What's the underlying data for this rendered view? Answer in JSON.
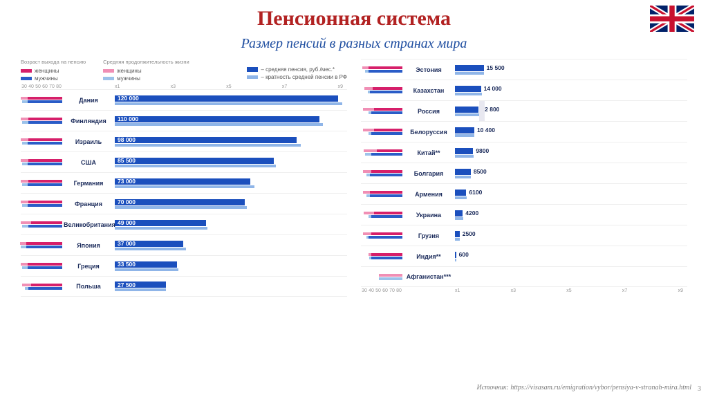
{
  "title": "Пенсионная система",
  "subtitle": "Размер пенсий в разных странах мира",
  "source_label": "Источник:",
  "source_url": "https://visasam.ru/emigration/vybor/pensiya-v-stranah-mira.html",
  "page_number": "3",
  "colors": {
    "title": "#b22222",
    "subtitle": "#1f4ea0",
    "women_dark": "#d61f6a",
    "men_dark": "#2a5cc7",
    "women_light": "#f08fb5",
    "men_light": "#9cc2ea",
    "pension": "#1b4fbd",
    "multiplicity": "#8fb5e8",
    "grid": "#eeeeee",
    "country_text": "#1a2a5a",
    "russia_marker": "#e8e8f0"
  },
  "legend": {
    "col1_head": "Возраст выхода на пенсию",
    "col2_head": "Средняя продолжительность жизни",
    "women": "женщины",
    "men": "мужчины",
    "pension_line": "– средняя пенсия, руб./мес.*",
    "mult_line": "– кратность средней пенсии в РФ"
  },
  "axis": {
    "left_ticks": [
      "80",
      "70",
      "60",
      "50",
      "40",
      "30"
    ],
    "left_max": 80,
    "right_ticks": [
      "x1",
      "x3",
      "x5",
      "x7",
      "x9"
    ],
    "right_max_pension": 125000,
    "right_max_mult": 9.5
  },
  "panel1": {
    "countries": [
      {
        "name": "Дания",
        "women_age": 67,
        "men_age": 67,
        "women_life": 80,
        "men_life": 78,
        "pension": 120000,
        "pension_label": "120 000",
        "mult": 9.3
      },
      {
        "name": "Финляндия",
        "women_age": 65,
        "men_age": 65,
        "women_life": 80,
        "men_life": 78,
        "pension": 110000,
        "pension_label": "110 000",
        "mult": 8.5
      },
      {
        "name": "Израиль",
        "women_age": 65,
        "men_age": 67,
        "women_life": 80,
        "men_life": 78,
        "pension": 98000,
        "pension_label": "98 000",
        "mult": 7.6
      },
      {
        "name": "США",
        "women_age": 65,
        "men_age": 67,
        "women_life": 80,
        "men_life": 78,
        "pension": 85500,
        "pension_label": "85 500",
        "mult": 6.6
      },
      {
        "name": "Германия",
        "women_age": 65,
        "men_age": 67,
        "women_life": 80,
        "men_life": 78,
        "pension": 73000,
        "pension_label": "73 000",
        "mult": 5.7
      },
      {
        "name": "Франция",
        "women_age": 65,
        "men_age": 67,
        "women_life": 80,
        "men_life": 78,
        "pension": 70000,
        "pension_label": "70 000",
        "mult": 5.4
      },
      {
        "name": "Великобритания",
        "women_age": 60,
        "men_age": 65,
        "women_life": 80,
        "men_life": 78,
        "pension": 49000,
        "pension_label": "49 000",
        "mult": 3.8
      },
      {
        "name": "Япония",
        "women_age": 70,
        "men_age": 70,
        "women_life": 82,
        "men_life": 80,
        "pension": 37000,
        "pension_label": "37 000",
        "mult": 2.9
      },
      {
        "name": "Греция",
        "women_age": 67,
        "men_age": 67,
        "women_life": 80,
        "men_life": 78,
        "pension": 33500,
        "pension_label": "33 500",
        "mult": 2.6
      },
      {
        "name": "Польша",
        "women_age": 60,
        "men_age": 65,
        "women_life": 78,
        "men_life": 72,
        "pension": 27500,
        "pension_label": "27 500",
        "mult": 2.1
      }
    ]
  },
  "panel2": {
    "countries": [
      {
        "name": "Эстония",
        "women_age": 65,
        "men_age": 65,
        "women_life": 78,
        "men_life": 72,
        "pension": 15500,
        "pension_label": "15 500",
        "mult": 1.2,
        "label_outside": true
      },
      {
        "name": "Казахстан",
        "women_age": 58,
        "men_age": 63,
        "women_life": 74,
        "men_life": 67,
        "pension": 14000,
        "pension_label": "14 000",
        "mult": 1.1,
        "label_outside": true
      },
      {
        "name": "Россия",
        "women_age": 55,
        "men_age": 60,
        "women_life": 76,
        "men_life": 66,
        "pension": 12800,
        "pension_label": "12 800",
        "mult": 1.0,
        "label_outside": true,
        "marker": true
      },
      {
        "name": "Белоруссия",
        "women_age": 55,
        "men_age": 60,
        "women_life": 76,
        "men_life": 66,
        "pension": 10400,
        "pension_label": "10 400",
        "mult": 0.8,
        "label_outside": true
      },
      {
        "name": "Китай**",
        "women_age": 50,
        "men_age": 60,
        "women_life": 75,
        "men_life": 72,
        "pension": 9800,
        "pension_label": "9800",
        "mult": 0.76,
        "label_outside": true
      },
      {
        "name": "Болгария",
        "women_age": 60,
        "men_age": 63,
        "women_life": 76,
        "men_life": 70,
        "pension": 8500,
        "pension_label": "8500",
        "mult": 0.66,
        "label_outside": true
      },
      {
        "name": "Армения",
        "women_age": 63,
        "men_age": 63,
        "women_life": 76,
        "men_life": 70,
        "pension": 6100,
        "pension_label": "6100",
        "mult": 0.47,
        "label_outside": true
      },
      {
        "name": "Украина",
        "women_age": 55,
        "men_age": 60,
        "women_life": 75,
        "men_life": 66,
        "pension": 4200,
        "pension_label": "4200",
        "mult": 0.33,
        "label_outside": true
      },
      {
        "name": "Грузия",
        "women_age": 60,
        "men_age": 65,
        "women_life": 76,
        "men_life": 70,
        "pension": 2500,
        "pension_label": "2500",
        "mult": 0.2,
        "label_outside": true
      },
      {
        "name": "Индия**",
        "women_age": 60,
        "men_age": 60,
        "women_life": 66,
        "men_life": 64,
        "pension": 600,
        "pension_label": "600",
        "mult": 0.05,
        "label_outside": true
      },
      {
        "name": "Афганистан***",
        "women_age": 0,
        "men_age": 0,
        "women_life": 45,
        "men_life": 45,
        "pension": 0,
        "pension_label": "",
        "mult": 0,
        "label_outside": true
      }
    ]
  }
}
